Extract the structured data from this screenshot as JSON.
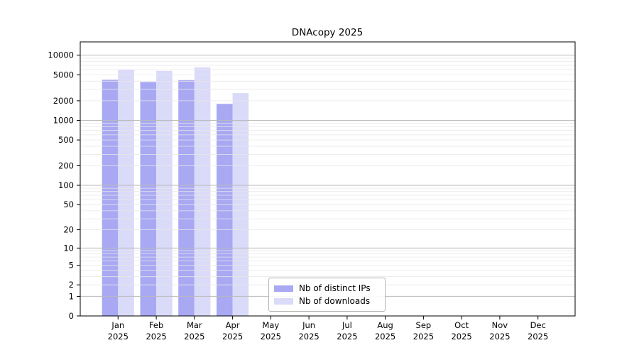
{
  "chart_data": {
    "type": "bar",
    "title": "DNAcopy 2025",
    "xlabel": "",
    "ylabel": "",
    "categories": [
      "Jan",
      "Feb",
      "Mar",
      "Apr",
      "May",
      "Jun",
      "Jul",
      "Aug",
      "Sep",
      "Oct",
      "Nov",
      "Dec"
    ],
    "year_label": "2025",
    "series": [
      {
        "name": "Nb of distinct IPs",
        "color": "#a8a8f3",
        "values": [
          4200,
          3880,
          4150,
          1790,
          0,
          0,
          0,
          0,
          0,
          0,
          0,
          0
        ]
      },
      {
        "name": "Nb of downloads",
        "color": "#dadaf9",
        "values": [
          6030,
          5750,
          6520,
          2620,
          0,
          0,
          0,
          0,
          0,
          0,
          0,
          0
        ]
      }
    ],
    "yscale": "log1p",
    "yticks": [
      0,
      1,
      2,
      5,
      10,
      20,
      50,
      100,
      200,
      500,
      1000,
      2000,
      5000,
      10000
    ],
    "ylim": [
      0,
      16000
    ],
    "grid": {
      "on": true,
      "major_at": [
        1,
        10,
        100,
        1000,
        10000
      ],
      "major_color": "#bababa",
      "minor_color": "#e8e8e8"
    },
    "legend_position": "lower center, inside plot",
    "colors": {
      "background": "#ffffff",
      "axis": "#000000",
      "text": "#000000"
    }
  }
}
